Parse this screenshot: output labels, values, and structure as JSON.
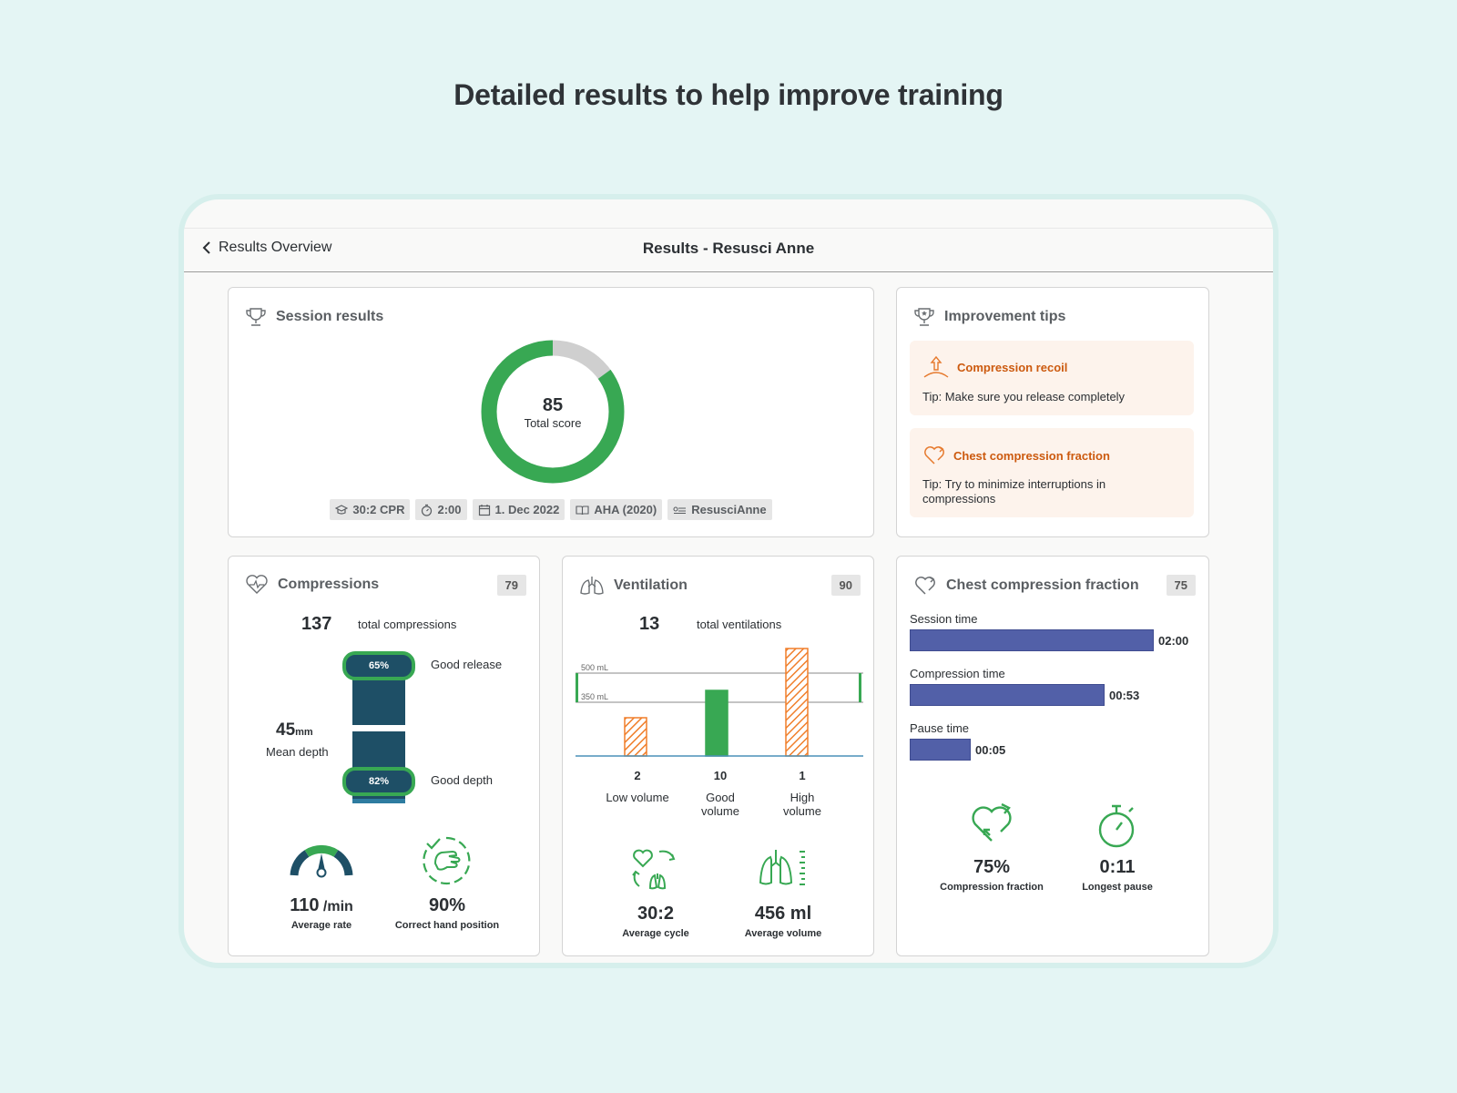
{
  "headline": "Detailed results to help improve training",
  "appbar": {
    "back_label": "Results Overview",
    "title": "Results - Resusci Anne"
  },
  "session": {
    "title": "Session results",
    "score": "85",
    "score_label": "Total score",
    "score_fraction": 0.85,
    "chips": [
      "30:2 CPR",
      "2:00",
      "1. Dec 2022",
      "AHA (2020)",
      "ResusciAnne"
    ]
  },
  "tips": {
    "title": "Improvement tips",
    "items": [
      {
        "heading": "Compression recoil",
        "text": "Tip: Make sure you release completely"
      },
      {
        "heading": "Chest compression fraction",
        "text": "Tip: Try to minimize interruptions in compressions"
      }
    ]
  },
  "compressions": {
    "title": "Compressions",
    "score": "79",
    "total": "137",
    "total_label": "total compressions",
    "release_pct": "65%",
    "release_label": "Good release",
    "depth_pct": "82%",
    "depth_label": "Good depth",
    "mean_depth": "45",
    "mean_depth_unit": "mm",
    "mean_depth_label": "Mean depth",
    "rate": "110",
    "rate_unit": "/min",
    "rate_label": "Average rate",
    "hand": "90%",
    "hand_label": "Correct hand position"
  },
  "ventilation": {
    "title": "Ventilation",
    "score": "90",
    "total": "13",
    "total_label": "total ventilations",
    "ref_high": "500 mL",
    "ref_low": "350 mL",
    "cycle": "30:2",
    "cycle_label": "Average cycle",
    "volume": "456 ml",
    "volume_label": "Average volume"
  },
  "chart_data": {
    "type": "bar",
    "categories": [
      "Low volume",
      "Good volume",
      "High volume"
    ],
    "values": [
      2,
      10,
      1
    ],
    "title": "",
    "xlabel": "",
    "ylabel": "",
    "reference_band": [
      "350 mL",
      "500 mL"
    ]
  },
  "ccf": {
    "title": "Chest compression fraction",
    "score": "75",
    "rows": [
      {
        "label": "Session time",
        "value": "02:00",
        "fraction": 1.0
      },
      {
        "label": "Compression time",
        "value": "00:53",
        "fraction": 0.8
      },
      {
        "label": "Pause time",
        "value": "00:05",
        "fraction": 0.25
      }
    ],
    "fraction": "75%",
    "fraction_label": "Compression fraction",
    "pause": "0:11",
    "pause_label": "Longest pause"
  },
  "colors": {
    "accent_green": "#38a853",
    "tip_orange": "#cc5a0f",
    "bar_blue": "#5260a8",
    "depth_navy": "#1e4f66"
  }
}
